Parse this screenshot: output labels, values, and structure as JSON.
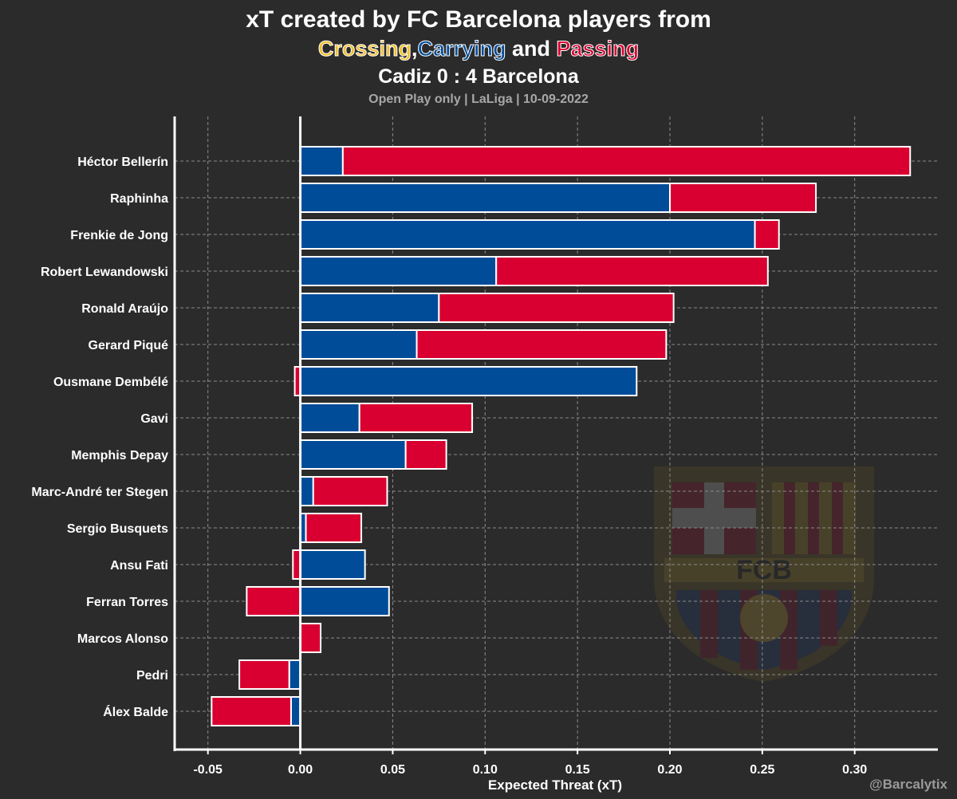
{
  "title": {
    "line1": "xT created by FC Barcelona players from",
    "line2": {
      "crossing": "Crossing",
      "sep": ",",
      "carrying": "Carrying",
      "and": " and ",
      "passing": "Passing"
    },
    "match": "Cadiz 0 : 4 Barcelona",
    "subtitle": "Open Play only | LaLiga | 10-09-2022"
  },
  "credit": "@Barcalytix",
  "colors": {
    "background": "#2b2b2b",
    "carrying": "#004c99",
    "passing": "#d90031",
    "crossing": "#f0be2c",
    "grid": "#8a8a8a"
  },
  "chart_data": {
    "type": "bar",
    "orientation": "horizontal",
    "stacked": true,
    "xlabel": "Expected Threat (xT)",
    "xlim": [
      -0.068,
      0.345
    ],
    "xticks": [
      -0.05,
      0.0,
      0.05,
      0.1,
      0.15,
      0.2,
      0.25,
      0.3
    ],
    "xtick_labels": [
      "-0.05",
      "0.00",
      "0.05",
      "0.10",
      "0.15",
      "0.20",
      "0.25",
      "0.30"
    ],
    "grid": true,
    "categories": [
      "Héctor Bellerín",
      "Raphinha",
      "Frenkie de Jong",
      "Robert Lewandowski",
      "Ronald Araújo",
      "Gerard Piqué",
      "Ousmane Dembélé",
      "Gavi",
      "Memphis Depay",
      "Marc-André ter Stegen",
      "Sergio Busquets",
      "Ansu Fati",
      "Ferran Torres",
      "Marcos Alonso",
      "Pedri",
      "Álex Balde"
    ],
    "series": [
      {
        "name": "Carrying",
        "color": "#004c99",
        "values": [
          0.023,
          0.2,
          0.246,
          0.106,
          0.075,
          0.063,
          0.182,
          0.032,
          0.057,
          0.007,
          0.003,
          0.035,
          0.048,
          0.0,
          -0.006,
          -0.005
        ]
      },
      {
        "name": "Passing",
        "color": "#d90031",
        "values": [
          0.307,
          0.079,
          0.013,
          0.147,
          0.127,
          0.135,
          -0.003,
          0.061,
          0.022,
          0.04,
          0.03,
          -0.004,
          -0.029,
          0.011,
          -0.027,
          -0.043
        ]
      }
    ]
  }
}
